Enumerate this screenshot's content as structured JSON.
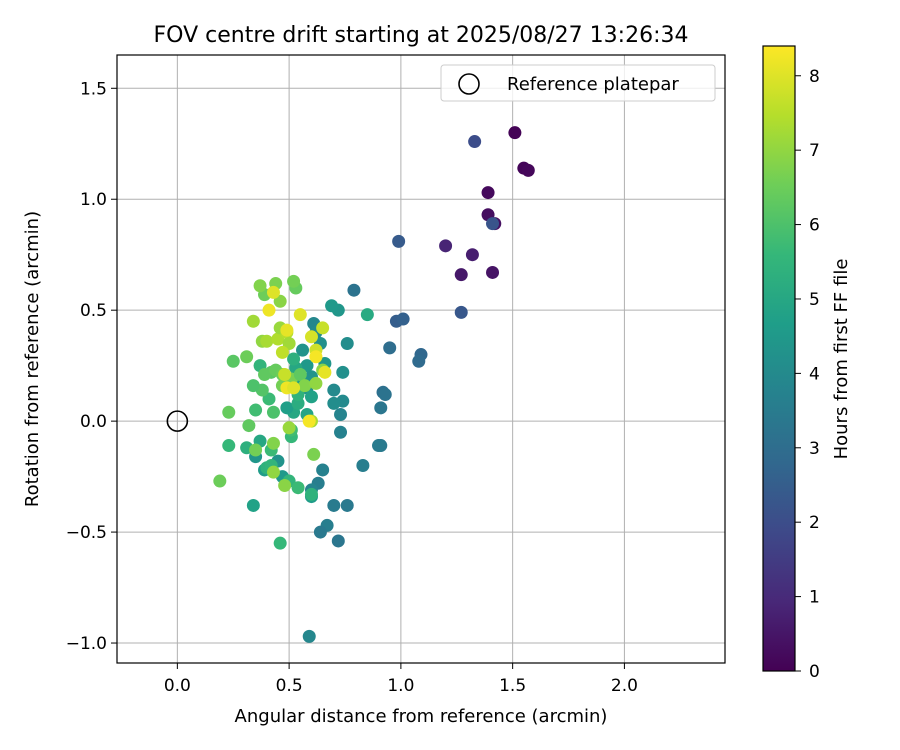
{
  "chart_data": {
    "type": "scatter",
    "title": "FOV centre drift starting at 2025/08/27 13:26:34",
    "xlabel": "Angular distance from reference (arcmin)",
    "ylabel": "Rotation from reference (arcmin)",
    "xlim": [
      -0.27,
      2.45
    ],
    "ylim": [
      -1.09,
      1.65
    ],
    "xticks": [
      0.0,
      0.5,
      1.0,
      1.5,
      2.0
    ],
    "xtick_labels": [
      "0.0",
      "0.5",
      "1.0",
      "1.5",
      "2.0"
    ],
    "yticks": [
      -1.0,
      -0.5,
      0.0,
      0.5,
      1.0,
      1.5
    ],
    "ytick_labels": [
      "−1.0",
      "−0.5",
      "0.0",
      "0.5",
      "1.0",
      "1.5"
    ],
    "grid": true,
    "legend": {
      "position": "top-right",
      "entries": [
        "Reference platepar"
      ]
    },
    "reference_point": {
      "x": 0.0,
      "y": 0.0
    },
    "colorbar": {
      "label": "Hours from first FF file",
      "colormap": "viridis",
      "range": [
        0,
        8.4
      ],
      "ticks": [
        0,
        1,
        2,
        3,
        4,
        5,
        6,
        7,
        8
      ],
      "tick_labels": [
        "0",
        "1",
        "2",
        "3",
        "4",
        "5",
        "6",
        "7",
        "8"
      ],
      "colors": [
        "#440154",
        "#482878",
        "#3e4989",
        "#31688e",
        "#26828e",
        "#1f9e89",
        "#35b779",
        "#6ece58",
        "#b5de2b",
        "#fde725"
      ]
    },
    "points": [
      [
        1.51,
        1.3,
        0.05
      ],
      [
        1.55,
        1.14,
        0.1
      ],
      [
        1.57,
        1.13,
        0.15
      ],
      [
        1.39,
        1.03,
        0.2
      ],
      [
        1.39,
        0.93,
        0.3
      ],
      [
        1.42,
        0.89,
        0.35
      ],
      [
        1.41,
        0.67,
        0.45
      ],
      [
        1.27,
        0.66,
        0.55
      ],
      [
        1.32,
        0.75,
        0.7
      ],
      [
        1.2,
        0.79,
        0.85
      ],
      [
        1.33,
        1.26,
        2.0
      ],
      [
        1.41,
        0.89,
        2.2
      ],
      [
        1.27,
        0.49,
        2.3
      ],
      [
        0.99,
        0.81,
        2.4
      ],
      [
        0.98,
        0.45,
        2.5
      ],
      [
        1.01,
        0.46,
        2.6
      ],
      [
        1.09,
        0.3,
        2.8
      ],
      [
        1.08,
        0.27,
        2.9
      ],
      [
        0.95,
        0.33,
        3.0
      ],
      [
        0.92,
        0.13,
        3.1
      ],
      [
        0.93,
        0.12,
        3.2
      ],
      [
        0.91,
        0.06,
        3.3
      ],
      [
        0.91,
        -0.11,
        3.4
      ],
      [
        0.9,
        -0.11,
        3.5
      ],
      [
        0.79,
        0.59,
        3.2
      ],
      [
        0.83,
        -0.2,
        3.6
      ],
      [
        0.76,
        -0.38,
        3.4
      ],
      [
        0.72,
        -0.54,
        3.3
      ],
      [
        0.7,
        -0.38,
        3.5
      ],
      [
        0.67,
        -0.47,
        3.6
      ],
      [
        0.64,
        -0.5,
        3.4
      ],
      [
        0.65,
        -0.22,
        3.7
      ],
      [
        0.63,
        -0.28,
        3.6
      ],
      [
        0.6,
        -0.31,
        3.8
      ],
      [
        0.6,
        -0.34,
        4.6
      ],
      [
        0.59,
        -0.97,
        3.9
      ],
      [
        0.73,
        -0.05,
        3.7
      ],
      [
        0.73,
        0.03,
        3.8
      ],
      [
        0.74,
        0.09,
        4.0
      ],
      [
        0.7,
        0.08,
        4.1
      ],
      [
        0.7,
        0.14,
        4.0
      ],
      [
        0.74,
        0.22,
        4.2
      ],
      [
        0.76,
        0.35,
        4.1
      ],
      [
        0.72,
        0.5,
        4.4
      ],
      [
        0.69,
        0.52,
        4.5
      ],
      [
        0.61,
        0.44,
        3.9
      ],
      [
        0.62,
        0.4,
        4.0
      ],
      [
        0.64,
        0.35,
        4.2
      ],
      [
        0.56,
        0.32,
        4.3
      ],
      [
        0.58,
        0.25,
        4.5
      ],
      [
        0.66,
        0.26,
        4.4
      ],
      [
        0.6,
        0.2,
        4.3
      ],
      [
        0.55,
        0.18,
        4.6
      ],
      [
        0.58,
        0.15,
        4.2
      ],
      [
        0.6,
        0.11,
        4.8
      ],
      [
        0.58,
        0.03,
        4.9
      ],
      [
        0.52,
        0.04,
        5.0
      ],
      [
        0.49,
        0.06,
        4.7
      ],
      [
        0.54,
        0.08,
        5.2
      ],
      [
        0.53,
        0.24,
        5.0
      ],
      [
        0.52,
        0.28,
        5.3
      ],
      [
        0.54,
        0.12,
        5.4
      ],
      [
        0.85,
        0.48,
        5.1
      ],
      [
        0.47,
        -0.25,
        4.5
      ],
      [
        0.45,
        -0.18,
        4.3
      ],
      [
        0.39,
        -0.22,
        4.6
      ],
      [
        0.35,
        -0.16,
        4.4
      ],
      [
        0.34,
        -0.38,
        4.8
      ],
      [
        0.37,
        -0.09,
        5.0
      ],
      [
        0.4,
        -0.21,
        5.4
      ],
      [
        0.42,
        -0.2,
        5.5
      ],
      [
        0.31,
        -0.12,
        5.3
      ],
      [
        0.42,
        -0.13,
        5.7
      ],
      [
        0.51,
        -0.07,
        5.6
      ],
      [
        0.51,
        -0.04,
        5.8
      ],
      [
        0.5,
        -0.27,
        5.5
      ],
      [
        0.54,
        -0.3,
        5.7
      ],
      [
        0.6,
        -0.33,
        5.4
      ],
      [
        0.46,
        -0.55,
        5.6
      ],
      [
        0.23,
        -0.11,
        5.6
      ],
      [
        0.35,
        0.05,
        5.8
      ],
      [
        0.43,
        0.04,
        6.0
      ],
      [
        0.41,
        0.1,
        5.7
      ],
      [
        0.38,
        0.14,
        6.1
      ],
      [
        0.34,
        0.16,
        6.0
      ],
      [
        0.37,
        0.25,
        5.5
      ],
      [
        0.42,
        0.22,
        6.2
      ],
      [
        0.39,
        0.21,
        6.3
      ],
      [
        0.44,
        0.23,
        6.4
      ],
      [
        0.47,
        0.21,
        6.5
      ],
      [
        0.47,
        0.16,
        6.6
      ],
      [
        0.51,
        0.19,
        6.7
      ],
      [
        0.55,
        0.21,
        6.3
      ],
      [
        0.57,
        0.16,
        6.8
      ],
      [
        0.62,
        0.17,
        7.0
      ],
      [
        0.65,
        0.23,
        6.9
      ],
      [
        0.31,
        0.29,
        6.5
      ],
      [
        0.25,
        0.27,
        6.2
      ],
      [
        0.23,
        0.04,
        6.4
      ],
      [
        0.19,
        -0.27,
        6.5
      ],
      [
        0.32,
        -0.02,
        6.3
      ],
      [
        0.35,
        -0.13,
        6.6
      ],
      [
        0.43,
        -0.1,
        6.8
      ],
      [
        0.43,
        -0.23,
        7.0
      ],
      [
        0.48,
        -0.29,
        6.9
      ],
      [
        0.61,
        -0.15,
        6.7
      ],
      [
        0.5,
        -0.03,
        7.1
      ],
      [
        0.6,
        0.0,
        7.3
      ],
      [
        0.53,
        0.6,
        6.4
      ],
      [
        0.52,
        0.63,
        6.6
      ],
      [
        0.39,
        0.57,
        6.5
      ],
      [
        0.44,
        0.62,
        6.7
      ],
      [
        0.37,
        0.61,
        6.8
      ],
      [
        0.46,
        0.54,
        6.9
      ],
      [
        0.34,
        0.45,
        7.2
      ],
      [
        0.38,
        0.36,
        7.0
      ],
      [
        0.4,
        0.36,
        7.3
      ],
      [
        0.45,
        0.37,
        7.4
      ],
      [
        0.46,
        0.42,
        7.1
      ],
      [
        0.49,
        0.4,
        7.5
      ],
      [
        0.5,
        0.35,
        7.2
      ],
      [
        0.47,
        0.31,
        7.6
      ],
      [
        0.43,
        0.58,
        8.0
      ],
      [
        0.41,
        0.5,
        8.2
      ],
      [
        0.49,
        0.41,
        8.1
      ],
      [
        0.55,
        0.48,
        8.0
      ],
      [
        0.6,
        0.38,
        7.9
      ],
      [
        0.62,
        0.32,
        7.8
      ],
      [
        0.65,
        0.42,
        7.7
      ],
      [
        0.62,
        0.29,
        8.3
      ],
      [
        0.66,
        0.22,
        8.1
      ],
      [
        0.48,
        0.21,
        7.7
      ],
      [
        0.49,
        0.15,
        8.2
      ],
      [
        0.52,
        0.15,
        8.0
      ],
      [
        0.59,
        0.0,
        8.3
      ]
    ]
  }
}
